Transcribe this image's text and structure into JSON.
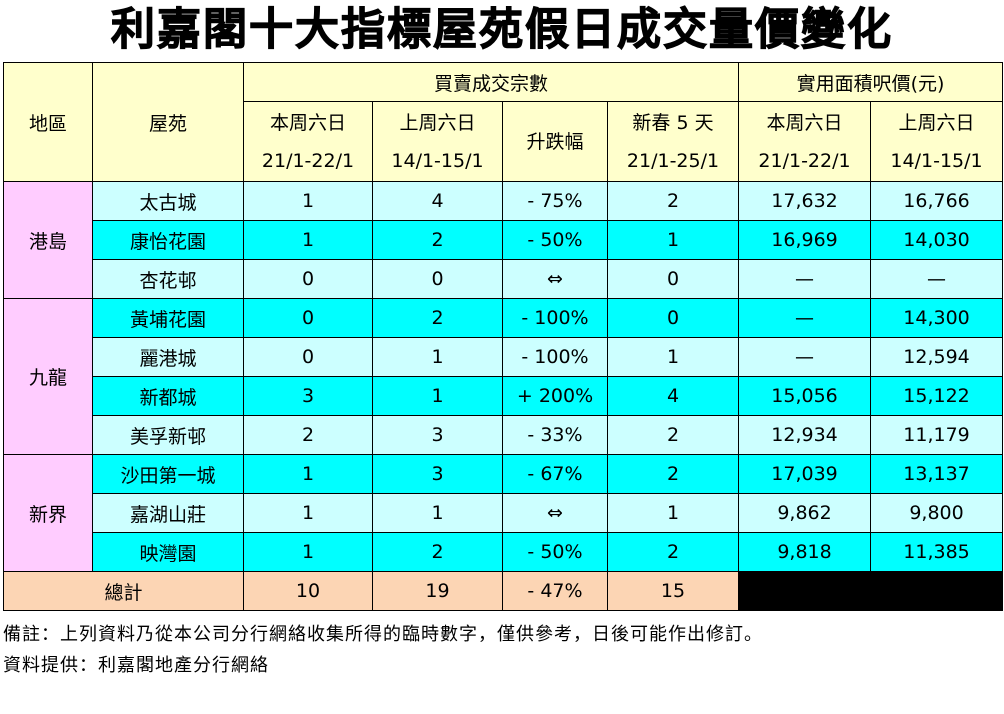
{
  "title": "利嘉閣十大指標屋苑假日成交量價變化",
  "table": {
    "headers": {
      "region": "地區",
      "estate": "屋苑",
      "volume": "買賣成交宗數",
      "price": "實用面積呎價(元)"
    },
    "columns": [
      {
        "label": "本周六日",
        "dates": "21/1-22/1"
      },
      {
        "label": "上周六日",
        "dates": "14/1-15/1"
      },
      {
        "label": "升跌幅"
      },
      {
        "label": "新春 5 天",
        "dates": "21/1-25/1"
      },
      {
        "label": "本周六日",
        "dates": "21/1-22/1"
      },
      {
        "label": "上周六日",
        "dates": "14/1-15/1"
      }
    ],
    "regions": [
      {
        "name": "港島",
        "rows": [
          [
            "太古城",
            "1",
            "4",
            "- 75%",
            "2",
            "17,632",
            "16,766"
          ],
          [
            "康怡花園",
            "1",
            "2",
            "- 50%",
            "1",
            "16,969",
            "14,030"
          ],
          [
            "杏花邨",
            "0",
            "0",
            "⇔",
            "0",
            "—",
            "—"
          ]
        ]
      },
      {
        "name": "九龍",
        "rows": [
          [
            "黃埔花園",
            "0",
            "2",
            "- 100%",
            "0",
            "—",
            "14,300"
          ],
          [
            "麗港城",
            "0",
            "1",
            "- 100%",
            "1",
            "—",
            "12,594"
          ],
          [
            "新都城",
            "3",
            "1",
            "+ 200%",
            "4",
            "15,056",
            "15,122"
          ],
          [
            "美孚新邨",
            "2",
            "3",
            "- 33%",
            "2",
            "12,934",
            "11,179"
          ]
        ]
      },
      {
        "name": "新界",
        "rows": [
          [
            "沙田第一城",
            "1",
            "3",
            "- 67%",
            "2",
            "17,039",
            "13,137"
          ],
          [
            "嘉湖山莊",
            "1",
            "1",
            "⇔",
            "1",
            "9,862",
            "9,800"
          ],
          [
            "映灣園",
            "1",
            "2",
            "- 50%",
            "2",
            "9,818",
            "11,385"
          ]
        ]
      }
    ],
    "total": {
      "label": "總計",
      "values": [
        "10",
        "19",
        "- 47%",
        "15"
      ]
    }
  },
  "notes": [
    "備註：上列資料乃從本公司分行網絡收集所得的臨時數字，僅供參考，日後可能作出修訂。",
    "資料提供：利嘉閣地產分行網絡"
  ]
}
